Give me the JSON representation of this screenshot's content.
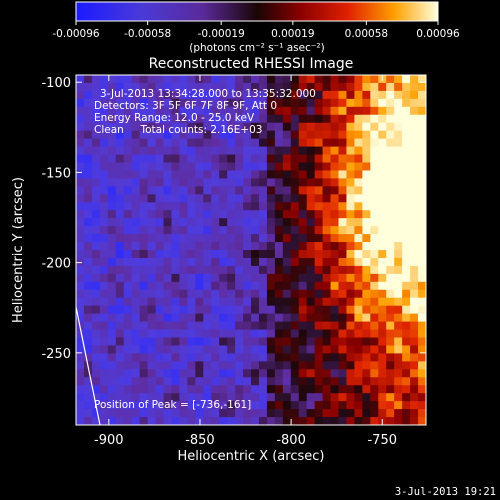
{
  "chart_data": {
    "type": "heatmap",
    "title": "Reconstructed RHESSI Image",
    "xlabel": "Heliocentric X (arcsec)",
    "ylabel": "Heliocentric Y (arcsec)",
    "xlim": [
      -918,
      -726
    ],
    "ylim": [
      -290,
      -96
    ],
    "x_ticks": [
      -900,
      -850,
      -800,
      -750
    ],
    "y_ticks": [
      -100,
      -150,
      -200,
      -250
    ],
    "colorbar": {
      "min": -0.00096,
      "max": 0.00096,
      "ticks": [
        -0.00096,
        -0.00058,
        -0.00019,
        0.00019,
        0.00058,
        0.00096
      ],
      "tick_labels": [
        "-0.00096",
        "-0.00058",
        "-0.00019",
        "0.00019",
        "0.00058",
        "0.00096"
      ],
      "unit_label": "(photons cm⁻² s⁻¹ asec⁻²)"
    },
    "annotations": [
      "3-Jul-2013 13:34:28.000 to 13:35:32.000",
      "Detectors: 3F 5F 6F 7F 8F 9F, Att 0",
      "Energy Range: 12.0 - 25.0 keV",
      "Clean     Total counts: 2.16E+03"
    ],
    "peak_label": "Position of Peak = [-736,-161]",
    "peak": [
      -736,
      -161
    ],
    "grid": false,
    "limb_line": true
  },
  "footer": {
    "timestamp": "3-Jul-2013 19:21"
  },
  "colors": {
    "background": "#000000",
    "foreground": "#ffffff"
  }
}
